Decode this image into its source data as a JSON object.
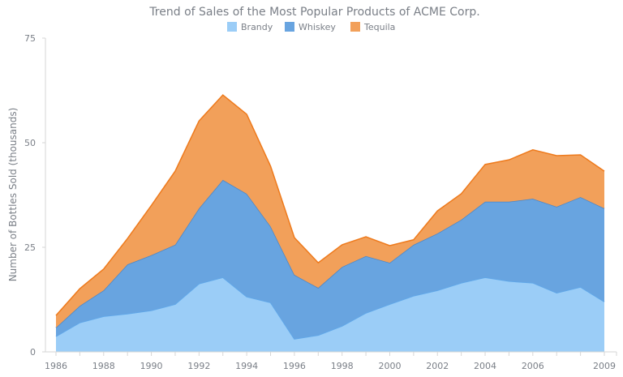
{
  "chart_data": {
    "type": "area",
    "stacked": true,
    "title": "Trend of Sales of the Most Popular Products of ACME Corp.",
    "xlabel": "",
    "ylabel": "Number of Bottles Sold (thousands)",
    "ylim": [
      0,
      75
    ],
    "yticks": [
      "0",
      "25",
      "50",
      "75"
    ],
    "xticks": [
      "1986",
      "1988",
      "1990",
      "1992",
      "1994",
      "1996",
      "1998",
      "2000",
      "2002",
      "2004",
      "2006",
      "2009"
    ],
    "legend_position": "top",
    "grid": false,
    "x": [
      1986,
      1987,
      1988,
      1989,
      1990,
      1991,
      1992,
      1993,
      1994,
      1995,
      1996,
      1997,
      1998,
      1999,
      2000,
      2001,
      2002,
      2003,
      2004,
      2005,
      2006,
      2007,
      2008,
      2009
    ],
    "series": [
      {
        "name": "Brandy",
        "color": "#9bcdf7",
        "line": "#5fa8ea",
        "values": [
          3.7,
          7.0,
          8.5,
          9.1,
          9.9,
          11.4,
          16.3,
          17.8,
          13.2,
          11.8,
          3.1,
          4.0,
          6.2,
          9.3,
          11.4,
          13.4,
          14.7,
          16.5,
          17.8,
          16.9,
          16.5,
          14.1,
          15.5,
          12.0
        ]
      },
      {
        "name": "Whiskey",
        "color": "#68a4e0",
        "line": "#4a86c8",
        "values": [
          2.1,
          4.0,
          6.2,
          11.8,
          13.2,
          14.2,
          18.0,
          23.3,
          24.6,
          18.2,
          15.3,
          11.3,
          14.1,
          13.6,
          9.9,
          12.2,
          13.6,
          15.1,
          18.1,
          19.0,
          20.1,
          20.6,
          21.5,
          22.3
        ]
      },
      {
        "name": "Tequila",
        "color": "#f2a05a",
        "line": "#ee7a1c",
        "values": [
          2.9,
          4.1,
          5.1,
          6.2,
          11.9,
          17.6,
          20.9,
          20.3,
          19.0,
          14.4,
          8.9,
          6.0,
          5.3,
          4.6,
          4.1,
          1.2,
          5.4,
          6.2,
          8.9,
          10.0,
          11.7,
          12.2,
          10.1,
          8.9
        ]
      }
    ]
  }
}
